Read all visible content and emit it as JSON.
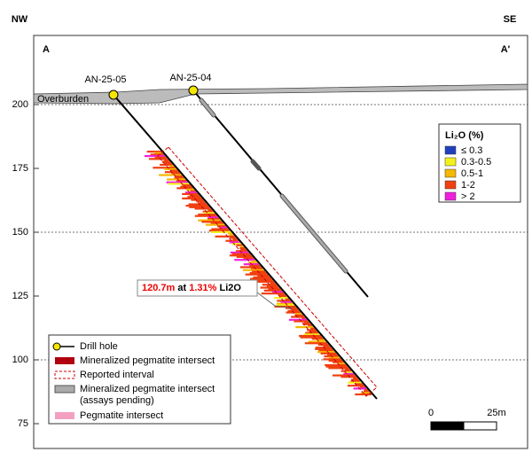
{
  "header": {
    "left": "NW",
    "right": "SE",
    "section_left": "A",
    "section_right": "A'"
  },
  "axis": {
    "ticks": [
      "200",
      "175",
      "150",
      "125",
      "100",
      "75"
    ]
  },
  "overburden": "Overburden",
  "holes": [
    {
      "label": "AN-25-05"
    },
    {
      "label": "AN-25-04"
    }
  ],
  "callout": {
    "length": "120.7m",
    "at": "at",
    "grade": "1.31%",
    "unit": "Li2O"
  },
  "grade_legend": {
    "title": "Li₂O (%)",
    "items": [
      {
        "label": "≤ 0.3",
        "color": "#1f3fbf"
      },
      {
        "label": "0.3-0.5",
        "color": "#f2f21a"
      },
      {
        "label": "0.5-1",
        "color": "#f5b800"
      },
      {
        "label": "1-2",
        "color": "#f04010"
      },
      {
        "label": "> 2",
        "color": "#f020e0"
      }
    ]
  },
  "legend": {
    "items": [
      "Drill hole",
      "Mineralized pegmatite intersect",
      "Reported interval",
      "Mineralized pegmatite intersect",
      "(assays pending)",
      "Pegmatite intersect"
    ]
  },
  "scale": {
    "start": "0",
    "end": "25m"
  }
}
